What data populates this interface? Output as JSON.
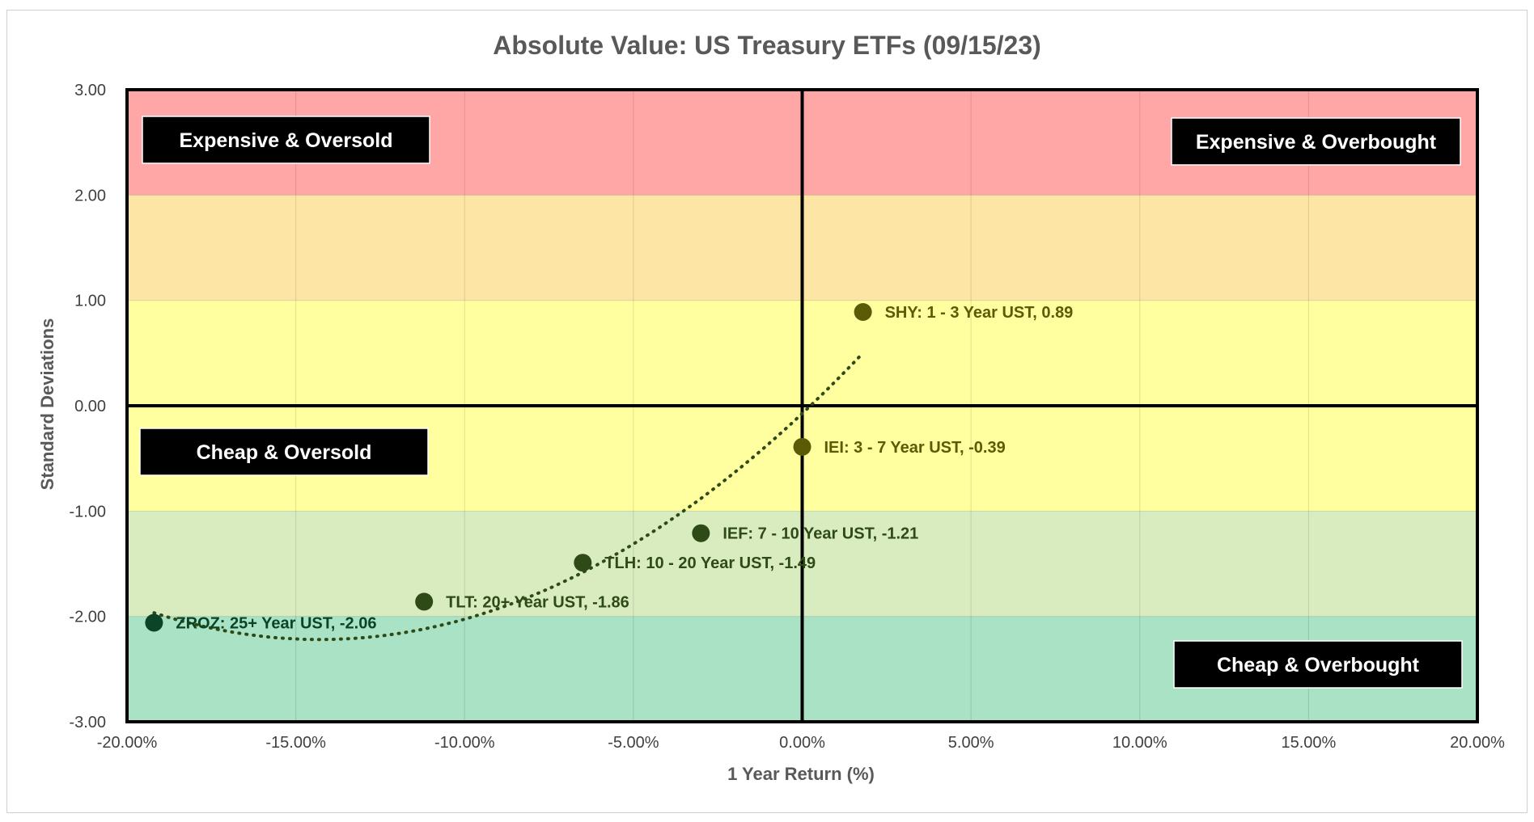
{
  "chart_data": {
    "type": "scatter",
    "title": "Absolute Value: US Treasury ETFs (09/15/23)",
    "xlabel": "1 Year Return (%)",
    "ylabel": "Standard Deviations",
    "xlim": [
      -20,
      20
    ],
    "ylim": [
      -3,
      3
    ],
    "x_ticks": [
      "-20.00%",
      "-15.00%",
      "-10.00%",
      "-5.00%",
      "0.00%",
      "5.00%",
      "10.00%",
      "15.00%",
      "20.00%"
    ],
    "y_ticks": [
      "3.00",
      "2.00",
      "1.00",
      "0.00",
      "-1.00",
      "-2.00",
      "-3.00"
    ],
    "grid": true,
    "bands": [
      {
        "from": 2,
        "to": 3,
        "color": "#ffa7a7"
      },
      {
        "from": 1,
        "to": 2,
        "color": "#fde5a6"
      },
      {
        "from": 0,
        "to": 1,
        "color": "#ffff9f"
      },
      {
        "from": -1,
        "to": 0,
        "color": "#ffff9f"
      },
      {
        "from": -2,
        "to": -1,
        "color": "#d9ecc0"
      },
      {
        "from": -3,
        "to": -2,
        "color": "#a9e2c4"
      }
    ],
    "points": [
      {
        "x": 1.8,
        "y": 0.89,
        "label": "SHY: 1 - 3 Year UST, 0.89",
        "color": "#5b5b05"
      },
      {
        "x": 0.0,
        "y": -0.39,
        "label": "IEI: 3 - 7 Year UST, -0.39",
        "color": "#5b5b05"
      },
      {
        "x": -3.0,
        "y": -1.21,
        "label": "IEF: 7 - 10 Year UST, -1.21",
        "color": "#2e4a17"
      },
      {
        "x": -6.5,
        "y": -1.49,
        "label": "TLH: 10 - 20 Year UST, -1.49",
        "color": "#2e4a17"
      },
      {
        "x": -11.2,
        "y": -1.86,
        "label": "TLT: 20+ Year UST, -1.86",
        "color": "#2e4a17"
      },
      {
        "x": -19.2,
        "y": -2.06,
        "label": "ZROZ: 25+ Year UST, -2.06",
        "color": "#0b4426"
      }
    ],
    "trendline": {
      "type": "polynomial",
      "style": "dotted",
      "color": "#2e4a17",
      "x_range": [
        -19.2,
        1.8
      ]
    },
    "quadrant_labels": {
      "top_left": "Expensive & Oversold",
      "top_right": "Expensive & Overbought",
      "bottom_left": "Cheap & Oversold",
      "bottom_right": "Cheap & Overbought"
    }
  }
}
